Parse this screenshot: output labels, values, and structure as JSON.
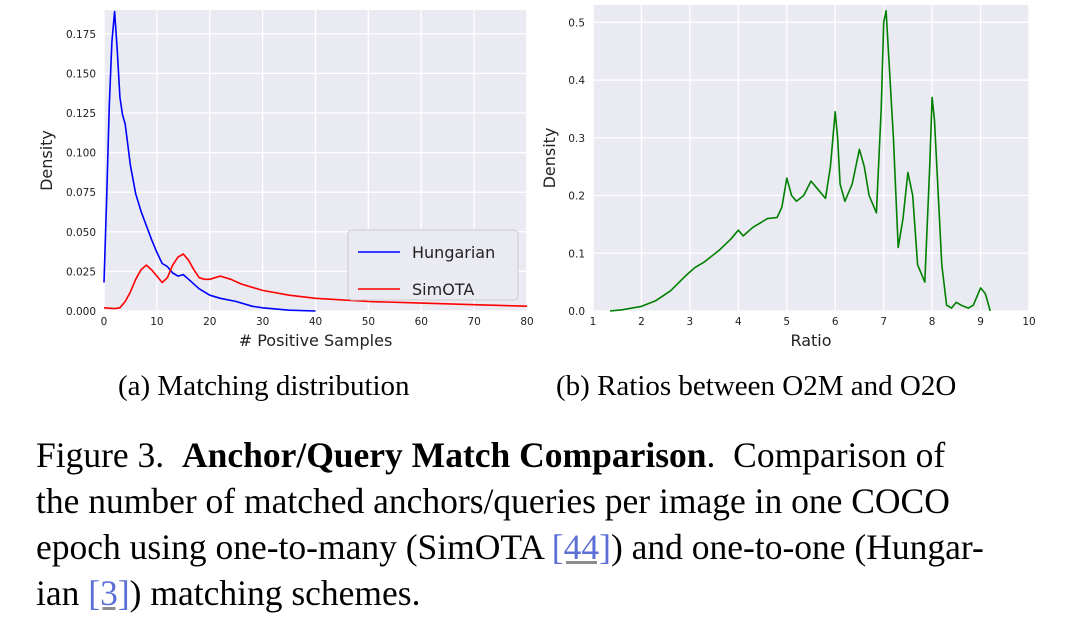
{
  "chart_data": [
    {
      "type": "line",
      "xlabel": "# Positive Samples",
      "ylabel": "Density",
      "xlim": [
        0,
        80
      ],
      "ylim": [
        0,
        0.19
      ],
      "x_ticks": [
        0,
        10,
        20,
        30,
        40,
        50,
        60,
        70,
        80
      ],
      "y_ticks": [
        0.0,
        0.025,
        0.05,
        0.075,
        0.1,
        0.125,
        0.15,
        0.175
      ],
      "grid": true,
      "legend_position": "lower-right",
      "series": [
        {
          "name": "Hungarian",
          "color": "#0000ff",
          "x": [
            0,
            0.5,
            1,
            1.5,
            2,
            2.5,
            3,
            3.5,
            4,
            5,
            6,
            7,
            8,
            9,
            10,
            11,
            12,
            13,
            14,
            15,
            16,
            18,
            20,
            22,
            25,
            28,
            30,
            35,
            40
          ],
          "y": [
            0.018,
            0.07,
            0.13,
            0.17,
            0.189,
            0.165,
            0.135,
            0.124,
            0.118,
            0.092,
            0.074,
            0.063,
            0.054,
            0.045,
            0.037,
            0.03,
            0.028,
            0.024,
            0.022,
            0.023,
            0.02,
            0.014,
            0.01,
            0.008,
            0.006,
            0.003,
            0.002,
            0.0005,
            0.0
          ]
        },
        {
          "name": "SimOTA",
          "color": "#ff0000",
          "x": [
            0,
            2,
            3,
            4,
            5,
            6,
            7,
            8,
            9,
            10,
            11,
            12,
            13,
            14,
            15,
            16,
            17,
            18,
            19,
            20,
            21,
            22,
            24,
            26,
            30,
            35,
            40,
            50,
            60,
            70,
            80
          ],
          "y": [
            0.002,
            0.0015,
            0.002,
            0.006,
            0.012,
            0.02,
            0.026,
            0.029,
            0.026,
            0.022,
            0.018,
            0.021,
            0.029,
            0.034,
            0.036,
            0.032,
            0.026,
            0.021,
            0.02,
            0.02,
            0.021,
            0.022,
            0.02,
            0.017,
            0.013,
            0.01,
            0.008,
            0.006,
            0.005,
            0.004,
            0.003
          ]
        }
      ]
    },
    {
      "type": "line",
      "xlabel": "Ratio",
      "ylabel": "Density",
      "xlim": [
        1,
        10
      ],
      "ylim": [
        0,
        0.53
      ],
      "x_ticks": [
        1,
        2,
        3,
        4,
        5,
        6,
        7,
        8,
        9,
        10
      ],
      "y_ticks": [
        0.0,
        0.1,
        0.2,
        0.3,
        0.4,
        0.5
      ],
      "grid": true,
      "series": [
        {
          "color": "#008000",
          "x": [
            1.35,
            1.6,
            2.0,
            2.3,
            2.6,
            2.9,
            3.1,
            3.3,
            3.6,
            3.85,
            4.0,
            4.1,
            4.3,
            4.5,
            4.6,
            4.8,
            4.9,
            5.0,
            5.1,
            5.2,
            5.35,
            5.5,
            5.65,
            5.8,
            5.9,
            6.0,
            6.05,
            6.1,
            6.2,
            6.35,
            6.5,
            6.6,
            6.7,
            6.85,
            6.95,
            7.0,
            7.05,
            7.2,
            7.3,
            7.4,
            7.5,
            7.6,
            7.7,
            7.85,
            7.95,
            8.0,
            8.05,
            8.2,
            8.3,
            8.4,
            8.5,
            8.6,
            8.75,
            8.85,
            9.0,
            9.1,
            9.2
          ],
          "y": [
            0.0,
            0.002,
            0.008,
            0.018,
            0.035,
            0.06,
            0.075,
            0.085,
            0.105,
            0.125,
            0.14,
            0.13,
            0.145,
            0.155,
            0.16,
            0.162,
            0.18,
            0.23,
            0.2,
            0.19,
            0.2,
            0.225,
            0.21,
            0.195,
            0.25,
            0.345,
            0.3,
            0.22,
            0.19,
            0.22,
            0.28,
            0.25,
            0.2,
            0.17,
            0.35,
            0.5,
            0.52,
            0.3,
            0.11,
            0.16,
            0.24,
            0.2,
            0.08,
            0.05,
            0.25,
            0.37,
            0.33,
            0.08,
            0.01,
            0.005,
            0.015,
            0.01,
            0.005,
            0.01,
            0.04,
            0.03,
            0.0
          ]
        }
      ]
    }
  ],
  "subcaptions": {
    "a": "(a) Matching distribution",
    "b": "(b) Ratios between O2M and O2O"
  },
  "caption": {
    "line1_prefix": "Figure 3.  ",
    "line1_bold": "Anchor/Query Match Comparison",
    "line1_suffix": ".  Comparison of",
    "line2": "the number of matched anchors/queries per image in one COCO",
    "line3_prefix": "epoch using one-to-many (SimOTA ",
    "ref_44": "[44]",
    "line3_suffix": ") and one-to-one (Hungar-",
    "line4_prefix": "ian ",
    "ref_3": "[3]",
    "line4_suffix": ") matching schemes."
  },
  "colors": {
    "plot_background": "#eaeaf2",
    "grid": "#ffffff",
    "hungarian": "#0000ff",
    "simota": "#ff0000",
    "ratio": "#008000",
    "reference_link": "#5b6fd6"
  }
}
